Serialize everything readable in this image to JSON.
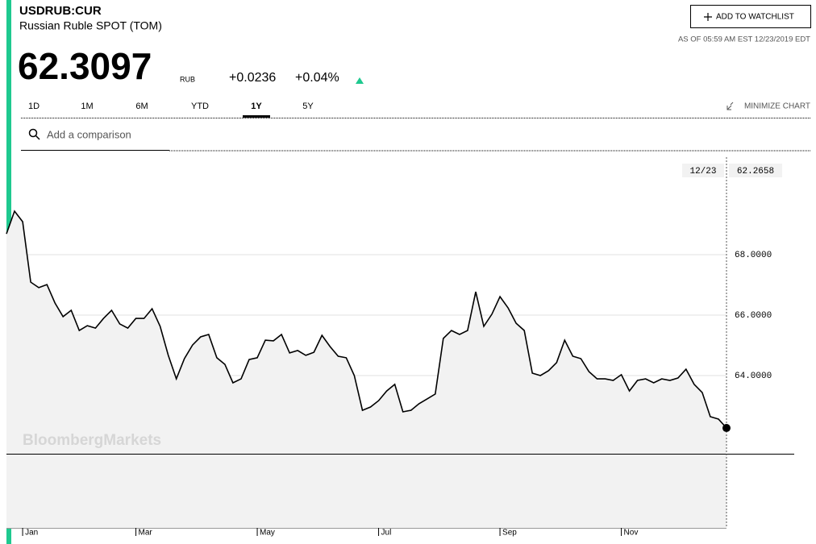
{
  "header": {
    "ticker": "USDRUB:CUR",
    "name": "Russian Ruble SPOT (TOM)",
    "watchlist": "ADD TO WATCHLIST",
    "as_of": "AS OF 05:59 AM EST 12/23/2019 EDT",
    "price": "62.3097",
    "currency": "RUB",
    "change": "+0.0236",
    "change_pct": "+0.04%"
  },
  "tabs": [
    "1D",
    "1M",
    "6M",
    "YTD",
    "1Y",
    "5Y"
  ],
  "minimize": "MINIMIZE CHART",
  "comparison": "Add a comparison",
  "watermark": "BloombergMarkets",
  "chart_data": {
    "type": "line",
    "crosshair_date": "12/23",
    "categories": [
      null,
      null,
      "Jan",
      null,
      null,
      null,
      null,
      null,
      null,
      null,
      null,
      null,
      null,
      null,
      null,
      null,
      "Mar",
      null,
      null,
      null,
      null,
      null,
      null,
      null,
      null,
      null,
      null,
      null,
      null,
      null,
      null,
      "May",
      null,
      null,
      null,
      null,
      null,
      null,
      null,
      null,
      null,
      null,
      null,
      null,
      null,
      null,
      "Jul",
      null,
      null,
      null,
      null,
      null,
      null,
      null,
      null,
      null,
      null,
      null,
      null,
      null,
      null,
      "Sep",
      null,
      null,
      null,
      null,
      null,
      null,
      null,
      null,
      null,
      null,
      null,
      null,
      null,
      null,
      "Nov",
      null,
      null,
      null,
      null,
      null,
      null,
      null,
      null,
      null,
      null,
      null,
      null,
      null
    ],
    "series": [
      {
        "name": "USDRUB:CUR",
        "color": "#000000",
        "values": [
          68.69,
          69.44,
          69.09,
          67.09,
          66.91,
          67.01,
          66.4,
          65.95,
          66.16,
          65.49,
          65.65,
          65.57,
          65.89,
          66.16,
          65.71,
          65.57,
          65.89,
          65.89,
          66.21,
          65.63,
          64.67,
          63.89,
          64.56,
          65.01,
          65.28,
          65.36,
          64.59,
          64.37,
          63.76,
          63.89,
          64.53,
          64.59,
          65.17,
          65.15,
          65.36,
          64.75,
          64.83,
          64.67,
          64.77,
          65.33,
          64.96,
          64.64,
          64.59,
          64.0,
          62.85,
          62.96,
          63.17,
          63.49,
          63.71,
          62.8,
          62.85,
          63.07,
          63.23,
          63.39,
          65.23,
          65.49,
          65.36,
          65.49,
          66.77,
          65.63,
          66.03,
          66.61,
          66.24,
          65.73,
          65.49,
          64.08,
          64.0,
          64.16,
          64.43,
          65.17,
          64.64,
          64.56,
          64.13,
          63.89,
          63.89,
          63.84,
          64.03,
          63.49,
          63.84,
          63.89,
          63.76,
          63.89,
          63.84,
          63.92,
          64.21,
          63.71,
          63.44,
          62.64,
          62.56,
          62.2658
        ]
      }
    ],
    "ylim": [
      58.96,
      71.36
    ],
    "yticks": [
      {
        "value": 64,
        "label": "64.0000"
      },
      {
        "value": 66,
        "label": "66.0000"
      },
      {
        "value": 68,
        "label": "68.0000"
      }
    ],
    "grid": true
  }
}
